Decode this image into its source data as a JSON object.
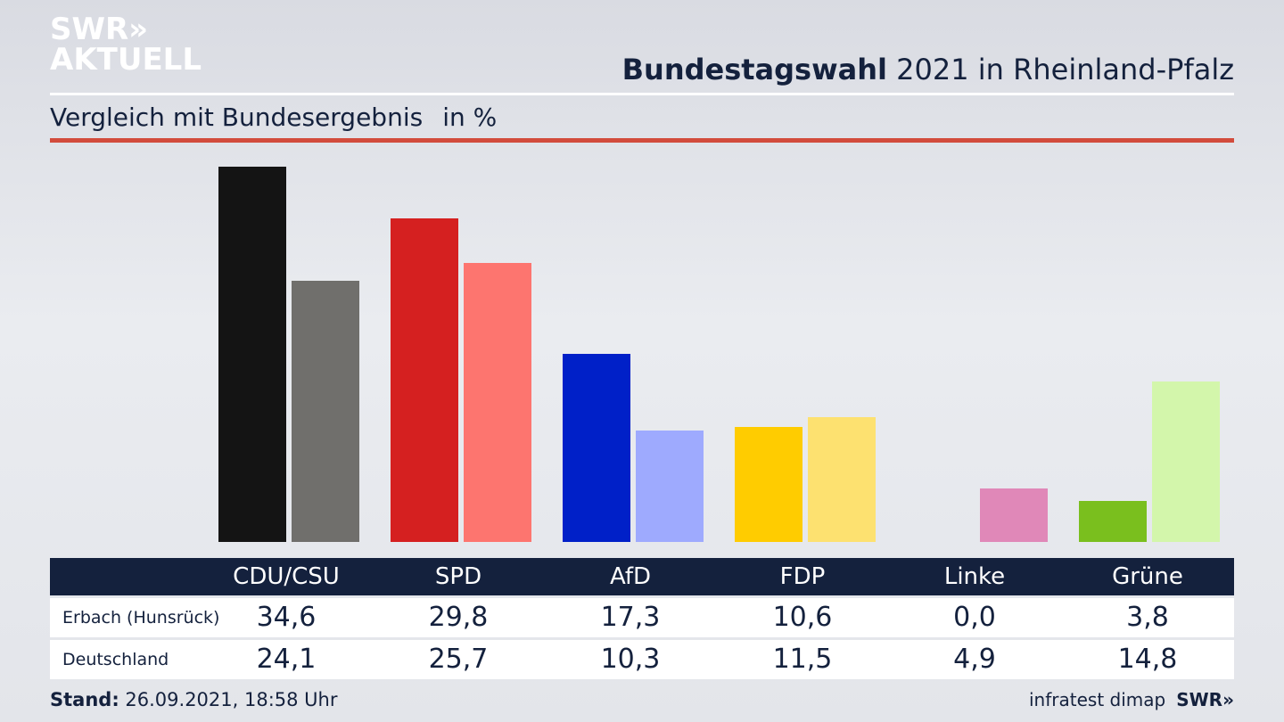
{
  "logo": {
    "line1": "SWR»",
    "line2": "AKTUELL"
  },
  "header": {
    "title_bold": "Bundestagswahl",
    "title_rest": " 2021 in Rheinland-Pfalz",
    "subtitle": "Vergleich mit Bundesergebnis",
    "unit": "in %"
  },
  "colors": {
    "accent_rule": "#d24b3c",
    "table_header_bg": "#14213d"
  },
  "chart_data": {
    "type": "bar",
    "categories": [
      "CDU/CSU",
      "SPD",
      "AfD",
      "FDP",
      "Linke",
      "Grüne"
    ],
    "series": [
      {
        "name": "Erbach (Hunsrück)",
        "values": [
          34.6,
          29.8,
          17.3,
          10.6,
          0.0,
          3.8
        ],
        "colors": [
          "#141414",
          "#d52020",
          "#0020c8",
          "#ffcc00",
          "#e088b8",
          "#7abf1e"
        ]
      },
      {
        "name": "Deutschland",
        "values": [
          24.1,
          25.7,
          10.3,
          11.5,
          4.9,
          14.8
        ],
        "colors": [
          "#706f6c",
          "#fd756f",
          "#9eaafe",
          "#fde170",
          "#e088b8",
          "#d3f6ab"
        ]
      }
    ],
    "title": "Bundestagswahl 2021 in Rheinland-Pfalz",
    "subtitle": "Vergleich mit Bundesergebnis",
    "unit": "in %",
    "ylim": [
      0,
      34.6
    ],
    "grid": false
  },
  "table": {
    "headers": [
      "CDU/CSU",
      "SPD",
      "AfD",
      "FDP",
      "Linke",
      "Grüne"
    ],
    "rows": [
      {
        "label": "Erbach (Hunsrück)",
        "values": [
          "34,6",
          "29,8",
          "17,3",
          "10,6",
          "0,0",
          "3,8"
        ]
      },
      {
        "label": "Deutschland",
        "values": [
          "24,1",
          "25,7",
          "10,3",
          "11,5",
          "4,9",
          "14,8"
        ]
      }
    ]
  },
  "footer": {
    "stand_label": "Stand:",
    "stand_value": " 26.09.2021, 18:58 Uhr",
    "source": "infratest dimap",
    "brand": "SWR»"
  }
}
